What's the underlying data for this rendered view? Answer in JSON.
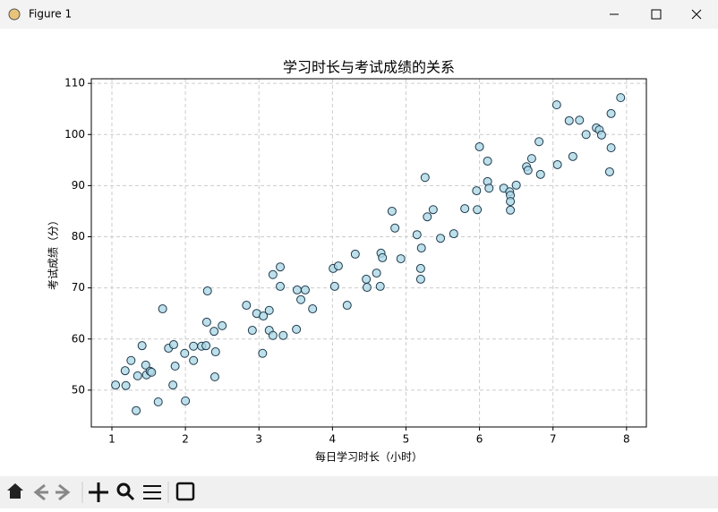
{
  "window": {
    "title": "Figure 1"
  },
  "chart_data": {
    "type": "scatter",
    "title": "学习时长与考试成绩的关系",
    "x_label": "每日学习时长（小时）",
    "y_label": "考试成绩（分）",
    "x": [
      1.05,
      1.18,
      1.26,
      1.19,
      1.33,
      1.35,
      1.41,
      1.46,
      1.47,
      1.52,
      1.54,
      1.63,
      1.69,
      1.77,
      1.84,
      1.83,
      1.86,
      1.99,
      2.0,
      2.11,
      2.11,
      2.22,
      2.28,
      2.29,
      2.3,
      2.39,
      2.41,
      2.4,
      2.5,
      2.83,
      2.91,
      2.97,
      3.05,
      3.06,
      3.14,
      3.14,
      3.19,
      3.19,
      3.29,
      3.29,
      3.33,
      3.51,
      3.52,
      3.57,
      3.63,
      3.73,
      4.01,
      4.03,
      4.08,
      4.2,
      4.31,
      4.46,
      4.47,
      4.6,
      4.65,
      4.66,
      4.68,
      4.81,
      4.85,
      4.93,
      5.15,
      5.2,
      5.21,
      5.2,
      5.26,
      5.29,
      5.37,
      5.47,
      5.65,
      5.8,
      5.96,
      5.97,
      6.0,
      6.11,
      6.11,
      6.13,
      6.33,
      6.41,
      6.42,
      6.42,
      6.42,
      6.5,
      6.64,
      6.66,
      6.71,
      6.81,
      6.83,
      7.05,
      7.06,
      7.22,
      7.27,
      7.36,
      7.45,
      7.59,
      7.63,
      7.66,
      7.77,
      7.79,
      7.79,
      7.92
    ],
    "y": [
      51.0,
      53.8,
      55.8,
      50.9,
      46.0,
      52.8,
      58.7,
      54.9,
      53.0,
      53.7,
      53.5,
      47.7,
      65.9,
      58.2,
      58.9,
      51.0,
      54.7,
      57.2,
      47.9,
      58.6,
      55.8,
      58.6,
      58.7,
      63.3,
      69.4,
      61.5,
      57.5,
      52.6,
      62.6,
      66.6,
      61.7,
      65.0,
      57.2,
      64.5,
      65.6,
      61.7,
      60.7,
      72.6,
      74.1,
      70.3,
      60.7,
      61.9,
      69.6,
      67.7,
      69.6,
      65.9,
      73.8,
      70.3,
      74.3,
      66.6,
      76.6,
      71.7,
      70.1,
      72.9,
      70.3,
      76.8,
      75.9,
      85.0,
      81.7,
      75.7,
      80.4,
      73.8,
      77.8,
      71.7,
      91.6,
      83.9,
      85.3,
      79.7,
      80.6,
      85.5,
      89.0,
      85.3,
      97.6,
      94.8,
      90.8,
      89.5,
      89.5,
      88.8,
      88.1,
      86.9,
      85.2,
      90.1,
      93.7,
      93.0,
      95.3,
      98.6,
      92.2,
      105.8,
      94.1,
      102.7,
      95.7,
      102.8,
      100.0,
      101.3,
      100.9,
      99.9,
      92.7,
      104.1,
      97.4,
      107.2
    ],
    "xlim": [
      0.72,
      8.27
    ],
    "ylim": [
      42.8,
      110.9
    ],
    "xticks": [
      1,
      2,
      3,
      4,
      5,
      6,
      7,
      8
    ],
    "yticks": [
      50,
      60,
      70,
      80,
      90,
      100,
      110
    ],
    "grid": true,
    "color": "#add8e6",
    "edge_color": "#1f3a4d"
  }
}
